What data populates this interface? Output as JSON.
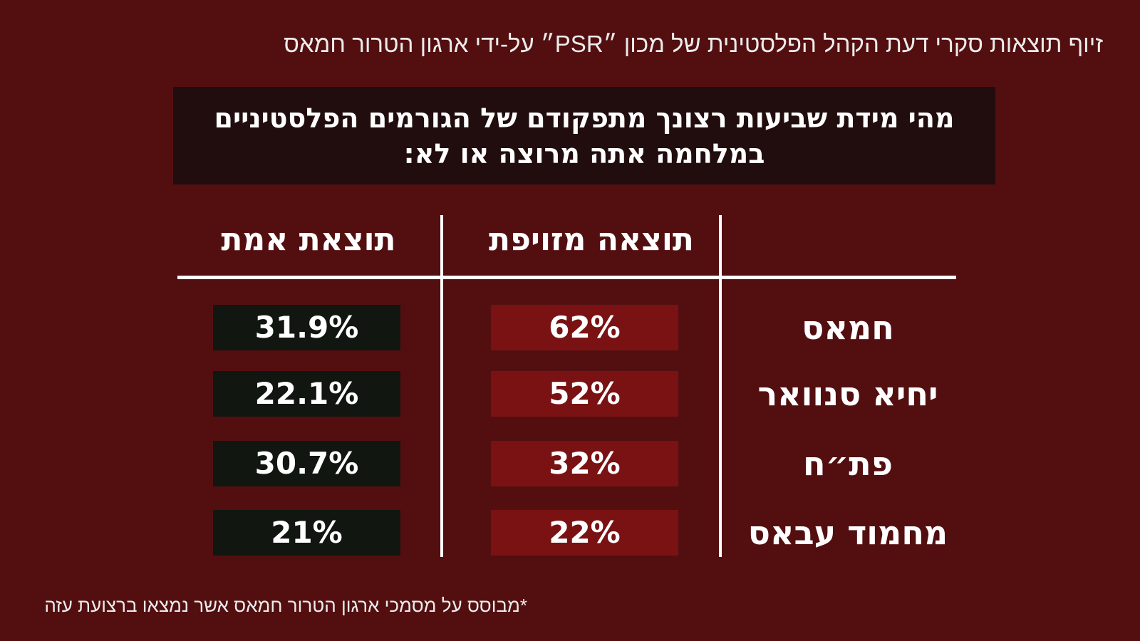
{
  "header": {
    "title": "זיוף תוצאות סקרי דעת הקהל הפלסטינית של מכון ״PSR״ על-ידי ארגון הטרור חמאס"
  },
  "question": {
    "line1": "מהי מידת שביעות רצונך מתפקודם של הגורמים הפלסטיניים",
    "line2": "במלחמה אתה מרוצה או לא:"
  },
  "columns": {
    "fake": "תוצאה מזויפת",
    "real": "תוצאת אמת"
  },
  "footnote": "*מבוסס על מסמכי ארגון הטרור חמאס אשר נמצאו ברצועת עזה",
  "colors": {
    "background": "#530f10",
    "question_box": "#220d0e",
    "fake_cell": "#7a1213",
    "real_cell": "#111611"
  },
  "chart_data": {
    "type": "table",
    "title": "מהי מידת שביעות רצונך מתפקודם של הגורמים הפלסטיניים במלחמה אתה מרוצה או לא:",
    "columns": [
      "תוצאה מזויפת",
      "תוצאת אמת"
    ],
    "rows": [
      {
        "label": "חמאס",
        "fake": "62%",
        "real": "31.9%"
      },
      {
        "label": "יחיא סנוואר",
        "fake": "52%",
        "real": "22.1%"
      },
      {
        "label": "פת״ח",
        "fake": "32%",
        "real": "30.7%"
      },
      {
        "label": "מחמוד עבאס",
        "fake": "22%",
        "real": "21%"
      }
    ]
  }
}
